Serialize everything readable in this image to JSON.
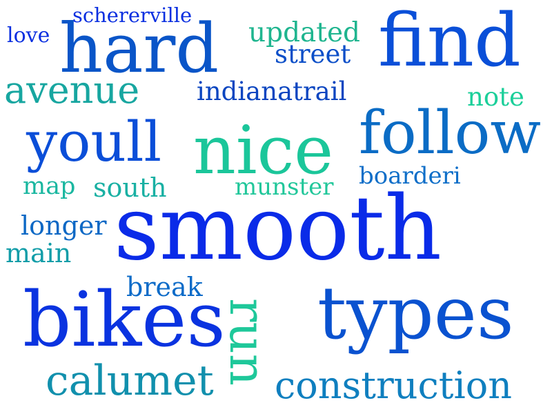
{
  "words": [
    {
      "text": "schererville",
      "color": "#0a2fe0"
    },
    {
      "text": "love",
      "color": "#0a2fe0"
    },
    {
      "text": "hard",
      "color": "#0a55c8"
    },
    {
      "text": "updated",
      "color": "#1fb58f"
    },
    {
      "text": "street",
      "color": "#0a4ec8"
    },
    {
      "text": "find",
      "color": "#0a4fd8"
    },
    {
      "text": "avenue",
      "color": "#17a6a0"
    },
    {
      "text": "indianatrail",
      "color": "#0a45c0"
    },
    {
      "text": "note",
      "color": "#1ccf9a"
    },
    {
      "text": "youll",
      "color": "#0a4ed8"
    },
    {
      "text": "nice",
      "color": "#1bc69a"
    },
    {
      "text": "follow",
      "color": "#0b6cc5"
    },
    {
      "text": "map",
      "color": "#1ab7a0"
    },
    {
      "text": "south",
      "color": "#19b0a3"
    },
    {
      "text": "munster",
      "color": "#21c79a"
    },
    {
      "text": "boarderi",
      "color": "#0d6ec8"
    },
    {
      "text": "longer",
      "color": "#0c68c5"
    },
    {
      "text": "smooth",
      "color": "#0a2be8"
    },
    {
      "text": "main",
      "color": "#129da8"
    },
    {
      "text": "break",
      "color": "#0c6bc8"
    },
    {
      "text": "bikes",
      "color": "#0a33e0"
    },
    {
      "text": "types",
      "color": "#0a52d0"
    },
    {
      "text": "run",
      "color": "#1ec89a"
    },
    {
      "text": "calumet",
      "color": "#1190ad"
    },
    {
      "text": "construction",
      "color": "#0f7fbf"
    }
  ]
}
